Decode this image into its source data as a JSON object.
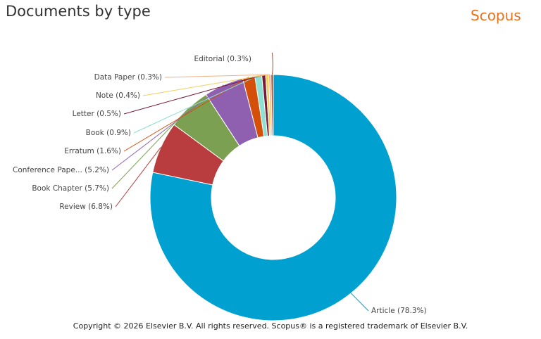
{
  "header": {
    "title": "Documents by type",
    "brand": "Scopus"
  },
  "footer": {
    "copyright": "Copyright © 2026 Elsevier B.V. All rights reserved. Scopus® is a registered trademark of Elsevier B.V."
  },
  "chart_data": {
    "type": "pie",
    "donut": true,
    "title": "Documents by type",
    "unit": "%",
    "slices": [
      {
        "label": "Article",
        "value": 78.3,
        "color": "#00a0d0"
      },
      {
        "label": "Review",
        "value": 6.8,
        "color": "#b93d3f"
      },
      {
        "label": "Book Chapter",
        "value": 5.7,
        "color": "#7ba052"
      },
      {
        "label": "Conference Pape...",
        "value": 5.2,
        "color": "#9060b0"
      },
      {
        "label": "Erratum",
        "value": 1.6,
        "color": "#d4500a"
      },
      {
        "label": "Book",
        "value": 0.9,
        "color": "#8ee0d4"
      },
      {
        "label": "Letter",
        "value": 0.5,
        "color": "#7a1a35"
      },
      {
        "label": "Note",
        "value": 0.4,
        "color": "#f0d060"
      },
      {
        "label": "Data Paper",
        "value": 0.3,
        "color": "#f5b080"
      },
      {
        "label": "Editorial",
        "value": 0.3,
        "color": "#a0503a"
      }
    ],
    "labels": [
      "Article (78.3%)",
      "Review (6.8%)",
      "Book Chapter (5.7%)",
      "Conference Pape... (5.2%)",
      "Erratum (1.6%)",
      "Book (0.9%)",
      "Letter (0.5%)",
      "Note (0.4%)",
      "Data Paper (0.3%)",
      "Editorial (0.3%)"
    ]
  }
}
